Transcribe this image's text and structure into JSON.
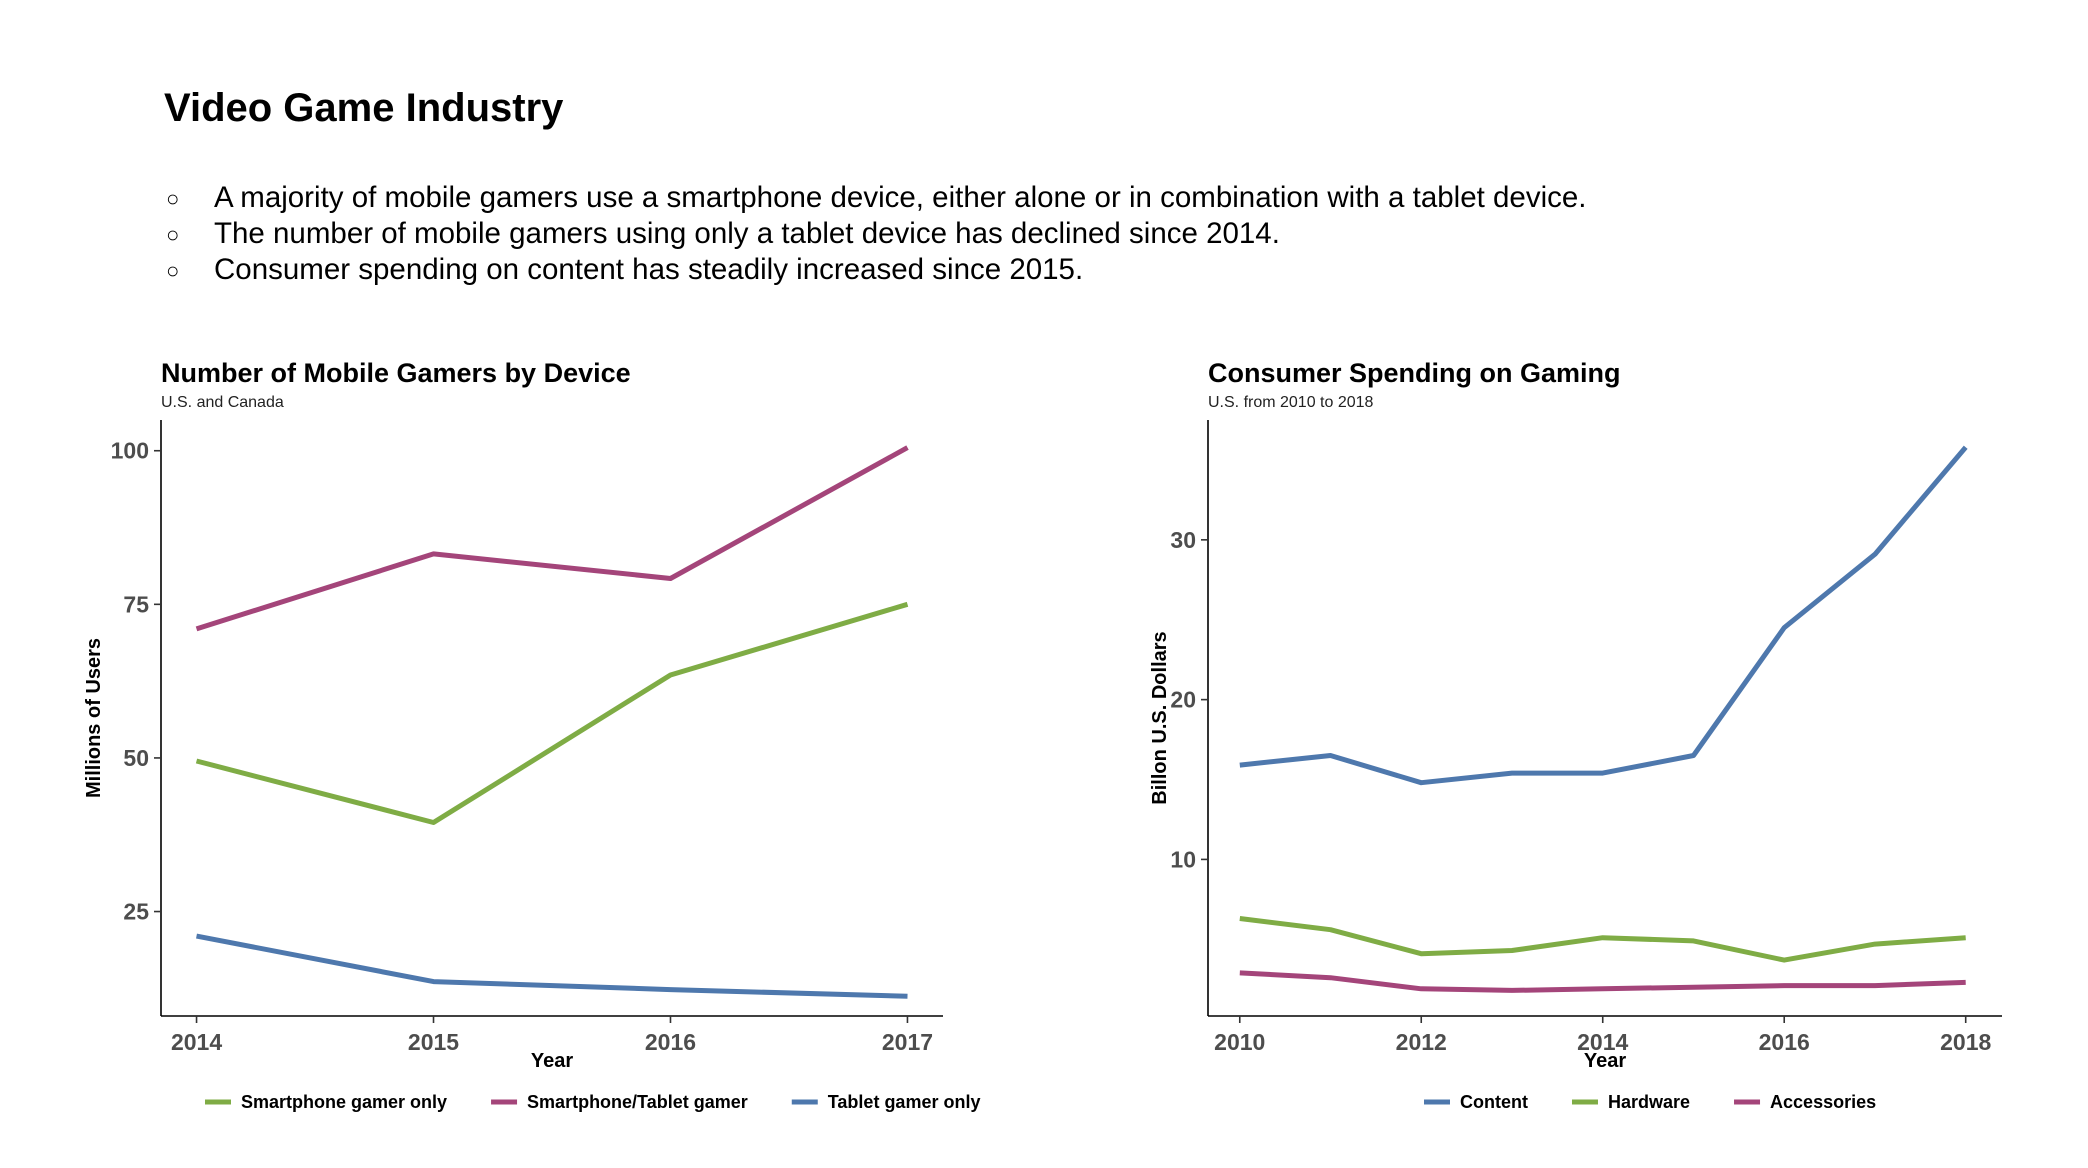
{
  "page": {
    "title": "Video Game Industry",
    "bullets": [
      "A majority of mobile gamers use a smartphone device, either alone or in combination with a tablet device.",
      "The number of mobile gamers using only a tablet device has declined since 2014.",
      "Consumer spending on content has steadily increased since 2015."
    ],
    "bullet_marker": "○"
  },
  "chart_data": [
    {
      "type": "line",
      "title": "Number of Mobile Gamers by Device",
      "subtitle": "U.S. and Canada",
      "xlabel": "Year",
      "ylabel": "Millions of Users",
      "x": [
        2014,
        2015,
        2016,
        2017
      ],
      "xticks": [
        "2014",
        "2015",
        "2016",
        "2017"
      ],
      "yticks": [
        25,
        50,
        75,
        100
      ],
      "xlim": [
        2013.85,
        2017.15
      ],
      "ylim": [
        8,
        105
      ],
      "grid": false,
      "legend_position": "bottom",
      "series": [
        {
          "name": "Smartphone gamer only",
          "color": "#7fac45",
          "values": [
            49.5,
            39.5,
            63.5,
            75
          ]
        },
        {
          "name": "Smartphone/Tablet gamer",
          "color": "#a4457a",
          "values": [
            71,
            83.2,
            79.2,
            100.5
          ]
        },
        {
          "name": "Tablet gamer only",
          "color": "#4e78ad",
          "values": [
            21,
            13.6,
            12.3,
            11.2
          ]
        }
      ]
    },
    {
      "type": "line",
      "title": "Consumer Spending on Gaming",
      "subtitle": "U.S. from 2010 to 2018",
      "xlabel": "Year",
      "ylabel": "Billon U.S. Dollars",
      "x": [
        2010,
        2011,
        2012,
        2013,
        2014,
        2015,
        2016,
        2017,
        2018
      ],
      "xticks": [
        "2010",
        "2012",
        "2014",
        "2016",
        "2018"
      ],
      "yticks": [
        10,
        20,
        30
      ],
      "xlim": [
        2009.65,
        2018.4
      ],
      "ylim": [
        0.2,
        37.5
      ],
      "grid": false,
      "legend_position": "bottom",
      "series": [
        {
          "name": "Content",
          "color": "#4e78ad",
          "values": [
            15.9,
            16.5,
            14.8,
            15.4,
            15.4,
            16.5,
            24.5,
            29.1,
            35.8
          ]
        },
        {
          "name": "Hardware",
          "color": "#7fac45",
          "values": [
            6.3,
            5.6,
            4.1,
            4.3,
            5.1,
            4.9,
            3.7,
            4.7,
            5.1
          ]
        },
        {
          "name": "Accessories",
          "color": "#a4457a",
          "values": [
            2.9,
            2.6,
            1.9,
            1.8,
            1.9,
            2.0,
            2.1,
            2.1,
            2.3
          ]
        }
      ]
    }
  ]
}
